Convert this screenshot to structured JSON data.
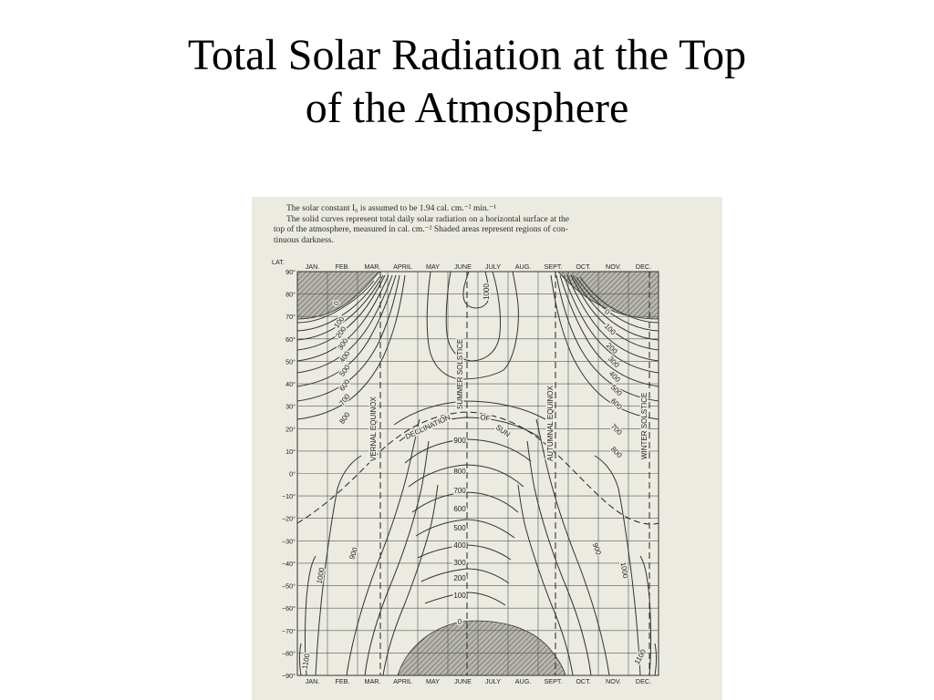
{
  "slide": {
    "title_line1": "Total Solar Radiation at the Top",
    "title_line2": "of the Atmosphere"
  },
  "figure": {
    "caption_line1": "The solar constant I₀ is assumed to be 1.94 cal. cm.⁻² min.⁻¹",
    "caption_line2": "The solid curves represent total daily solar radiation on a horizontal surface at the",
    "caption_line3": "top of the atmosphere, measured in cal. cm.⁻² Shaded areas represent regions of con-",
    "caption_line4": "tinuous darkness.",
    "lat_header": "LAT.",
    "months": [
      "JAN.",
      "FEB.",
      "MAR.",
      "APRIL",
      "MAY",
      "JUNE",
      "JULY",
      "AUG.",
      "SEPT.",
      "OCT.",
      "NOV.",
      "DEC."
    ],
    "latitude_ticks": [
      "90°",
      "80°",
      "70°",
      "60°",
      "50°",
      "40°",
      "30°",
      "20°",
      "10°",
      "0°",
      "−10°",
      "−20°",
      "−30°",
      "−40°",
      "−50°",
      "−60°",
      "−70°",
      "−80°",
      "−90°"
    ],
    "solstice_equinox_labels": [
      "VERNAL EQUINOX",
      "SUMMER SOLSTICE",
      "AUTUMNAL EQUINOX",
      "WINTER SOLSTICE"
    ],
    "declination_labels": [
      "DECLINATION",
      "OF",
      "SUN"
    ],
    "contour_labels": {
      "spring_nh": [
        "0",
        "100",
        "200",
        "300",
        "400",
        "500",
        "600",
        "700",
        "800"
      ],
      "autumn_nh": [
        "0",
        "100",
        "200",
        "300",
        "400",
        "500",
        "600",
        "700",
        "800"
      ],
      "june_top": "1000",
      "june_center": "900",
      "june_stack": [
        "800",
        "700",
        "600",
        "500",
        "400",
        "300",
        "200",
        "100",
        "0"
      ],
      "left_sh": [
        "900",
        "1000",
        "1100"
      ],
      "right_sh": [
        "900",
        "1000",
        "1100"
      ]
    },
    "colors": {
      "paper": "#ecebe2",
      "ink": "#333333",
      "shade": "#7a7a74"
    }
  }
}
